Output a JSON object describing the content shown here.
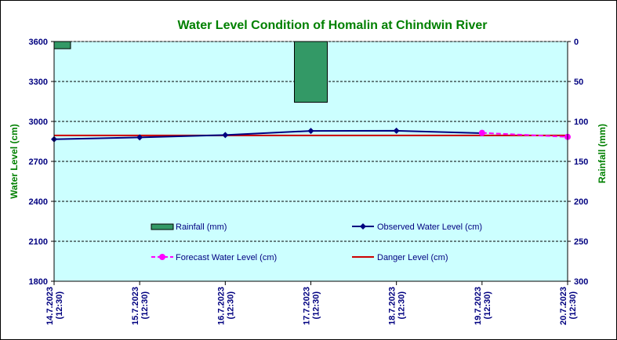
{
  "chart_data": {
    "type": "line",
    "title": "Water Level Condition of Homalin at Chindwin River",
    "ylabel": "Water Level (cm)",
    "y2label": "Rainfall (mm)",
    "categories": [
      "14.7.2023 (12:30)",
      "15.7.2023 (12:30)",
      "16.7.2023 (12:30)",
      "17.7.2023 (12:30)",
      "18.7.2023 (12:30)",
      "19.7.2023 (12:30)",
      "20.7.2023 (12:30)"
    ],
    "x_date_labels": [
      "14.7.2023",
      "15.7.2023",
      "16.7.2023",
      "17.7.2023",
      "18.7.2023",
      "19.7.2023",
      "20.7.2023"
    ],
    "x_time_labels": [
      "(12:30)",
      "(12:30)",
      "(12:30)",
      "(12:30)",
      "(12:30)",
      "(12:30)",
      "(12:30)"
    ],
    "ylim": [
      1800,
      3600
    ],
    "yticks": [
      1800,
      2100,
      2400,
      2700,
      3000,
      3300,
      3600
    ],
    "y2lim": [
      0,
      300
    ],
    "y2ticks": [
      0,
      50,
      100,
      150,
      200,
      250,
      300
    ],
    "y2_inverted": true,
    "grid": true,
    "series": [
      {
        "name": "Rainfall (mm)",
        "kind": "bar",
        "axis": "right",
        "color": "#339966",
        "x": [
          "14.7.2023 (12:30)",
          "17.7.2023 (12:30)"
        ],
        "values": [
          9,
          76
        ]
      },
      {
        "name": "Observed Water Level (cm)",
        "kind": "line",
        "marker": "diamond",
        "axis": "left",
        "color": "#000080",
        "x": [
          "14.7.2023 (12:30)",
          "15.7.2023 (12:30)",
          "16.7.2023 (12:30)",
          "17.7.2023 (12:30)",
          "18.7.2023 (12:30)",
          "19.7.2023 (12:30)"
        ],
        "values": [
          2866,
          2880,
          2898,
          2929,
          2930,
          2912
        ]
      },
      {
        "name": "Forecast Water Level (cm)",
        "kind": "line",
        "dashed": true,
        "marker": "circle",
        "axis": "left",
        "color": "#ff00ff",
        "x": [
          "19.7.2023 (12:30)",
          "20.7.2023 (12:30)"
        ],
        "values": [
          2914,
          2884
        ]
      },
      {
        "name": "Danger Level (cm)",
        "kind": "line",
        "axis": "left",
        "color": "#cc0000",
        "x": [
          "14.7.2023 (12:30)",
          "20.7.2023 (12:30)"
        ],
        "values": [
          2895,
          2895
        ]
      }
    ],
    "colors": {
      "plot_background": "#ccffff",
      "title": "#008000",
      "left_axis_text": "#000080",
      "right_axis_text": "#008000",
      "legend_text": "#000080"
    }
  }
}
